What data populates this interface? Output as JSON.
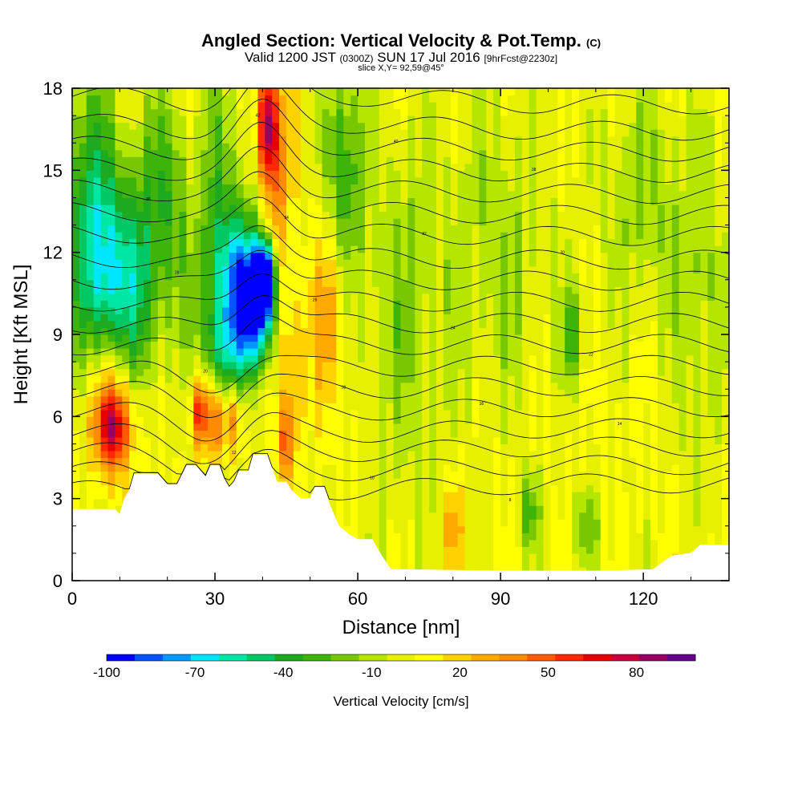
{
  "chart_data": {
    "type": "heatmap",
    "title": "Angled Section: Vertical Velocity & Pot.Temp.",
    "title_unit": "(C)",
    "subtitle": {
      "valid": "Valid 1200 JST",
      "utc": "(0300Z)",
      "date": "SUN 17 Jul 2016",
      "forecast": "[9hrFcst@2230z]",
      "slice": "slice X,Y= 92,59@45°"
    },
    "xlabel": "Distance [nm]",
    "ylabel": "Height [Kft MSL]",
    "xlim": [
      0,
      138
    ],
    "ylim": [
      0,
      18
    ],
    "x_ticks": [
      "0",
      "30",
      "60",
      "90",
      "120"
    ],
    "x_tick_values": [
      0,
      30,
      60,
      90,
      120
    ],
    "y_ticks": [
      "0",
      "3",
      "6",
      "9",
      "12",
      "15",
      "18"
    ],
    "y_tick_values": [
      0,
      3,
      6,
      9,
      12,
      15,
      18
    ],
    "background_value": 10,
    "features": [
      {
        "x": 4,
        "y": 13,
        "value": -40,
        "sx": 4,
        "sy": 4
      },
      {
        "x": 8,
        "y": 11,
        "value": -35,
        "sx": 3.5,
        "sy": 2.5
      },
      {
        "x": 14,
        "y": 10.5,
        "value": -30,
        "sx": 3,
        "sy": 3
      },
      {
        "x": 20,
        "y": 14,
        "value": -25,
        "sx": 4,
        "sy": 3
      },
      {
        "x": 30,
        "y": 13,
        "value": -30,
        "sx": 4,
        "sy": 4
      },
      {
        "x": 36,
        "y": 11,
        "value": -60,
        "sx": 3.5,
        "sy": 1.6
      },
      {
        "x": 40.5,
        "y": 11,
        "value": -100,
        "sx": 1.3,
        "sy": 0.9
      },
      {
        "x": 39,
        "y": 10,
        "value": -60,
        "sx": 2.5,
        "sy": 1.5
      },
      {
        "x": 33,
        "y": 8.5,
        "value": -30,
        "sx": 4,
        "sy": 1.3
      },
      {
        "x": 57,
        "y": 15,
        "value": -30,
        "sx": 3,
        "sy": 3
      },
      {
        "x": 26,
        "y": 15,
        "value": 30,
        "sx": 2.5,
        "sy": 3
      },
      {
        "x": 41,
        "y": 16.8,
        "value": 90,
        "sx": 1.4,
        "sy": 1.5
      },
      {
        "x": 43,
        "y": 14.5,
        "value": 45,
        "sx": 2,
        "sy": 2.5
      },
      {
        "x": 8.5,
        "y": 5.6,
        "value": 70,
        "sx": 2.5,
        "sy": 1.1
      },
      {
        "x": 8,
        "y": 6.6,
        "value": 45,
        "sx": 4,
        "sy": 1.8
      },
      {
        "x": 27,
        "y": 6.2,
        "value": 75,
        "sx": 1.3,
        "sy": 1
      },
      {
        "x": 30.5,
        "y": 5.8,
        "value": 55,
        "sx": 1.3,
        "sy": 1
      },
      {
        "x": 34,
        "y": 6,
        "value": 50,
        "sx": 1.2,
        "sy": 0.9
      },
      {
        "x": 46,
        "y": 8,
        "value": 35,
        "sx": 2,
        "sy": 2
      },
      {
        "x": 45,
        "y": 5,
        "value": 50,
        "sx": 1.2,
        "sy": 1
      },
      {
        "x": 54,
        "y": 10,
        "value": 40,
        "sx": 2.5,
        "sy": 2.5
      },
      {
        "x": 70,
        "y": 10,
        "value": -10,
        "sx": 6,
        "sy": 5
      },
      {
        "x": 90,
        "y": 12,
        "value": -8,
        "sx": 8,
        "sy": 4
      },
      {
        "x": 105,
        "y": 9,
        "value": -25,
        "sx": 1.5,
        "sy": 1.2
      },
      {
        "x": 120,
        "y": 14,
        "value": -10,
        "sx": 6,
        "sy": 3
      },
      {
        "x": 132,
        "y": 10,
        "value": -10,
        "sx": 4,
        "sy": 4
      },
      {
        "x": 80,
        "y": 2,
        "value": 35,
        "sx": 1.5,
        "sy": 1.2
      },
      {
        "x": 96,
        "y": 2.5,
        "value": -25,
        "sx": 1.5,
        "sy": 1
      },
      {
        "x": 108,
        "y": 2,
        "value": -15,
        "sx": 2,
        "sy": 1
      }
    ],
    "terrain": [
      [
        0,
        2.6
      ],
      [
        9,
        2.6
      ],
      [
        10,
        2.4
      ],
      [
        11,
        3.0
      ],
      [
        12,
        3.3
      ],
      [
        13,
        3.9
      ],
      [
        18,
        3.9
      ],
      [
        20,
        3.5
      ],
      [
        22,
        3.5
      ],
      [
        24,
        4.2
      ],
      [
        26,
        4.2
      ],
      [
        28,
        3.8
      ],
      [
        29,
        4.2
      ],
      [
        31,
        4.2
      ],
      [
        32,
        3.7
      ],
      [
        33,
        3.4
      ],
      [
        34,
        3.6
      ],
      [
        35,
        4.0
      ],
      [
        37,
        4.0
      ],
      [
        38,
        4.6
      ],
      [
        41,
        4.6
      ],
      [
        42,
        4.1
      ],
      [
        43,
        3.6
      ],
      [
        45,
        3.6
      ],
      [
        46,
        3.3
      ],
      [
        48,
        3.0
      ],
      [
        50,
        3.0
      ],
      [
        51,
        3.4
      ],
      [
        53,
        3.4
      ],
      [
        54,
        2.8
      ],
      [
        56,
        2.0
      ],
      [
        58,
        1.7
      ],
      [
        60,
        1.5
      ],
      [
        63,
        1.5
      ],
      [
        65,
        0.9
      ],
      [
        67,
        0.4
      ],
      [
        70,
        0.4
      ],
      [
        90,
        0.35
      ],
      [
        110,
        0.35
      ],
      [
        122,
        0.4
      ],
      [
        126,
        0.9
      ],
      [
        130,
        1.0
      ],
      [
        132,
        1.3
      ],
      [
        136,
        1.3
      ],
      [
        138,
        1.3
      ]
    ],
    "theta_contours": [
      {
        "label": "44",
        "base": 17.7
      },
      {
        "label": "42",
        "base": 16.7
      },
      {
        "label": "40",
        "base": 15.9
      },
      {
        "label": "38",
        "base": 15.1
      },
      {
        "label": "36",
        "base": 14.3
      },
      {
        "label": "34",
        "base": 13.5
      },
      {
        "label": "32",
        "base": 12.7
      },
      {
        "label": "30",
        "base": 11.8
      },
      {
        "label": "28",
        "base": 11.0
      },
      {
        "label": "26",
        "base": 10.2
      },
      {
        "label": "24",
        "base": 9.4
      },
      {
        "label": "22",
        "base": 8.6
      },
      {
        "label": "20",
        "base": 7.8
      },
      {
        "label": "18",
        "base": 7.0
      },
      {
        "label": "16",
        "base": 6.2
      },
      {
        "label": "14",
        "base": 5.4
      },
      {
        "label": "12",
        "base": 4.7
      },
      {
        "label": "10",
        "base": 4.0
      },
      {
        "label": "8",
        "base": 3.3
      }
    ],
    "colorbar": {
      "label": "Vertical Velocity [cm/s]",
      "tick_labels": [
        "-100",
        "-70",
        "-40",
        "-10",
        "20",
        "50",
        "80"
      ],
      "tick_values": [
        -100,
        -70,
        -40,
        -10,
        20,
        50,
        80
      ],
      "bins": [
        -100,
        -90,
        -80,
        -70,
        -60,
        -50,
        -40,
        -30,
        -20,
        -10,
        0,
        10,
        20,
        30,
        40,
        50,
        60,
        70,
        80,
        90,
        100
      ],
      "colors": [
        "#0000ff",
        "#0055ff",
        "#0099ff",
        "#00e6ff",
        "#00e6a5",
        "#00c864",
        "#1eaa1e",
        "#3cb40a",
        "#78c800",
        "#b4e600",
        "#e6f000",
        "#ffff00",
        "#ffd200",
        "#ffaa00",
        "#ff8c00",
        "#ff5a00",
        "#ff2800",
        "#e60000",
        "#c8003c",
        "#960064",
        "#64008c"
      ]
    }
  }
}
